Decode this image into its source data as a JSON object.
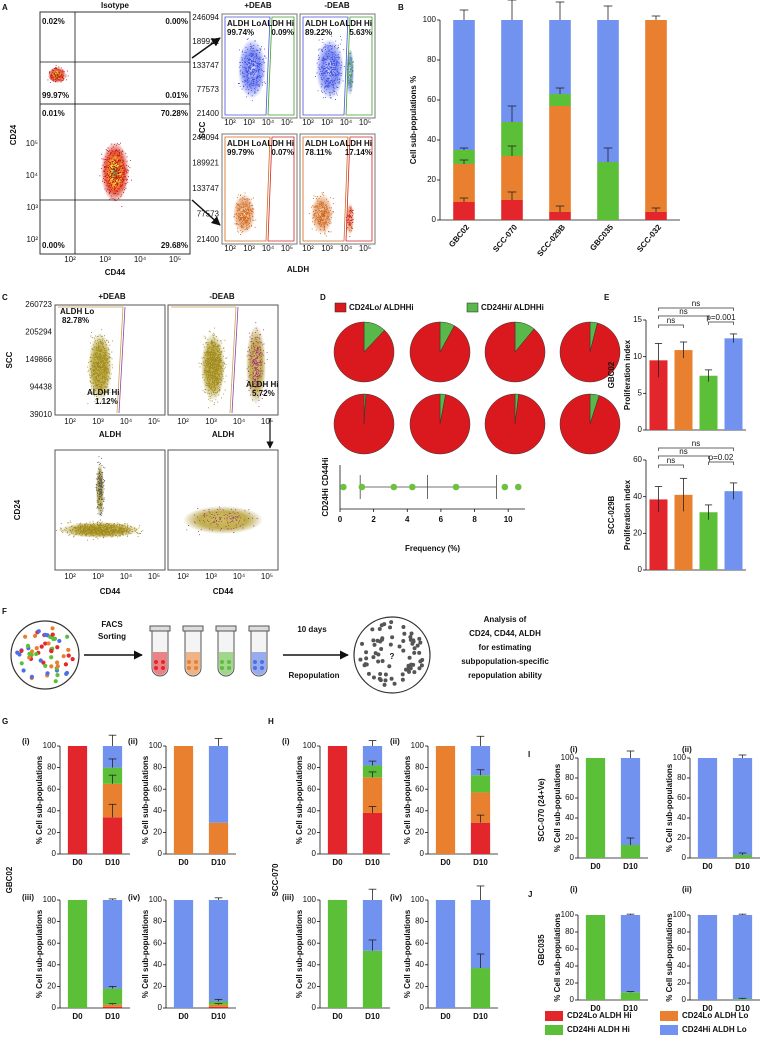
{
  "figure": {
    "panel_letters": [
      "A",
      "B",
      "C",
      "D",
      "E",
      "F",
      "G",
      "H",
      "I",
      "J"
    ],
    "log_ticks": [
      "10²",
      "10³",
      "10⁴",
      "10⁵"
    ],
    "A": {
      "title": "Isotype",
      "y_label": "CD24",
      "x_label": "CD44",
      "quadrants_top": [
        "0.02%",
        "0.00%",
        "99.97%",
        "0.01%"
      ],
      "quadrants_bottom": [
        "0.01%",
        "70.28%",
        "0.00%",
        "29.68%"
      ],
      "flow_y_label": "SCC",
      "flow_x_label": "ALDH",
      "conditions": [
        "+DEAB",
        "-DEAB"
      ],
      "scc_ticks": [
        246094,
        189921,
        133747,
        77573,
        21400
      ],
      "gates": [
        [
          "ALDH Lo",
          "99.74%",
          "ALDH Hi",
          "0.09%"
        ],
        [
          "ALDH Lo",
          "89.22%",
          "ALDH Hi",
          "5.63%"
        ],
        [
          "ALDH Lo",
          "99.79%",
          "ALDH Hi",
          "0.07%"
        ],
        [
          "ALDH Lo",
          "78.11%",
          "ALDH Hi",
          "17.14%"
        ]
      ]
    },
    "C": {
      "conditions": [
        "+DEAB",
        "-DEAB"
      ],
      "y_label": "SCC",
      "x_label": "ALDH",
      "scc_ticks": [
        260723,
        205294,
        149866,
        94438,
        39010
      ],
      "gate_lo": [
        "ALDH Lo",
        "82.78%"
      ],
      "gates_hi": [
        [
          "ALDH Hi",
          "1.12%"
        ],
        [
          "ALDH Hi",
          "5.72%"
        ]
      ],
      "bottom_y_label": "CD24",
      "bottom_x_label": "CD44"
    },
    "F": {
      "step1": [
        "FACS",
        "Sorting"
      ],
      "step2": "10 days",
      "step3": "Repopulation",
      "mark": "?",
      "analysis": [
        "Analysis of",
        "CD24, CD44, ALDH",
        "for estimating",
        "subpopulation-specific",
        "repopulation ability"
      ]
    },
    "G": {
      "sublabels": [
        "(i)",
        "(ii)",
        "(iii)",
        "(iv)"
      ],
      "side_label": "GBC02"
    },
    "H": {
      "sublabels": [
        "(i)",
        "(ii)",
        "(iii)",
        "(iv)"
      ],
      "side_label": "SCC-070"
    },
    "I": {
      "sublabels": [
        "(i)",
        "(ii)"
      ],
      "side_label": "SCC-070 (24+Ve)"
    },
    "J": {
      "sublabels": [
        "(i)",
        "(ii)"
      ],
      "side_label": "GBC035"
    },
    "legend": [
      {
        "name": "CD24Lo ALDH Hi",
        "color": "#e3262b"
      },
      {
        "name": "CD24Lo ALDH Lo",
        "color": "#e8802f"
      },
      {
        "name": "CD24Hi ALDH Hi",
        "color": "#5cbf38"
      },
      {
        "name": "CD24Hi ALDH Lo",
        "color": "#7193ef"
      }
    ]
  },
  "chart_data": [
    {
      "type": "stacked_bar",
      "y_label": "Cell sub-populations %",
      "categories": [
        "GBC02",
        "SCC-070",
        "SCC-029B",
        "GBC035",
        "SCC-032"
      ],
      "ylim": [
        0,
        100
      ],
      "yticks": [
        0,
        20,
        40,
        60,
        80,
        100
      ],
      "series": [
        {
          "color": "#e3262b",
          "values": [
            9,
            10,
            4,
            0,
            4
          ],
          "errors": [
            2,
            4,
            3,
            0,
            2
          ]
        },
        {
          "color": "#e8802f",
          "values": [
            19,
            22,
            53,
            0,
            96
          ],
          "errors": [
            2,
            5,
            0,
            0,
            2
          ]
        },
        {
          "color": "#5cbf38",
          "values": [
            7,
            17,
            6,
            29,
            0
          ],
          "errors": [
            1,
            8,
            3,
            7,
            0
          ]
        },
        {
          "color": "#7193ef",
          "values": [
            65,
            51,
            37,
            71,
            0
          ],
          "errors": [
            5,
            10,
            9,
            7,
            0
          ]
        }
      ]
    },
    {
      "type": "pie",
      "series": [
        {
          "name": "CD24Lo/ ALDHHi",
          "color": "#d9191e",
          "values": [
            88,
            92,
            89,
            96,
            99,
            97,
            98,
            95
          ]
        },
        {
          "name": "CD24Hi/ ALDHHi",
          "color": "#58b849",
          "values": [
            12,
            8,
            11,
            4,
            1,
            3,
            2,
            5
          ]
        }
      ]
    },
    {
      "type": "strip",
      "y_label": "CD24Hi CD44Hi",
      "x_label": "Frequency (%)",
      "values": [
        0.2,
        1.3,
        3.2,
        4.3,
        6.9,
        9.8,
        10.6
      ],
      "color": "#6ec13f",
      "lines": [
        1.2,
        5.2,
        9.3
      ],
      "xlim": [
        0,
        11
      ],
      "xticks": [
        0,
        2,
        4,
        6,
        8,
        10
      ]
    },
    {
      "type": "bar",
      "title": "GBC02",
      "y_label": "Proliferation index",
      "values": [
        9.5,
        10.9,
        7.4,
        12.5
      ],
      "errors": [
        2.3,
        1.1,
        0.8,
        0.6
      ],
      "colors": [
        "#e3262b",
        "#e8802f",
        "#5cbf38",
        "#7193ef"
      ],
      "ylim": [
        0,
        15
      ],
      "yticks": [
        0,
        5,
        10,
        15
      ],
      "comparisons": [
        {
          "pair": [
            0,
            3
          ],
          "label": "ns"
        },
        {
          "pair": [
            0,
            2
          ],
          "label": "ns"
        },
        {
          "pair": [
            0,
            1
          ],
          "label": "ns"
        },
        {
          "pair": [
            2,
            3
          ],
          "label": "p=0.001"
        }
      ]
    },
    {
      "type": "bar",
      "title": "SCC-029B",
      "y_label": "Proliferation index",
      "values": [
        38.5,
        41,
        31.5,
        43
      ],
      "errors": [
        7,
        9,
        4,
        4.5
      ],
      "colors": [
        "#e3262b",
        "#e8802f",
        "#5cbf38",
        "#7193ef"
      ],
      "ylim": [
        0,
        60
      ],
      "yticks": [
        0,
        20,
        40,
        60
      ],
      "comparisons": [
        {
          "pair": [
            0,
            3
          ],
          "label": "ns"
        },
        {
          "pair": [
            0,
            2
          ],
          "label": "ns"
        },
        {
          "pair": [
            0,
            1
          ],
          "label": "ns"
        },
        {
          "pair": [
            2,
            3
          ],
          "label": "p=0.02"
        }
      ]
    },
    {
      "type": "stacked_bar",
      "y_label": "% Cell sub-populations",
      "categories": [
        "D0",
        "D10"
      ],
      "ylim": [
        0,
        100
      ],
      "yticks": [
        0,
        20,
        40,
        60,
        80,
        100
      ],
      "series": [
        {
          "color": "#e3262b",
          "values": [
            100,
            34
          ],
          "errors": [
            0,
            12
          ]
        },
        {
          "color": "#e8802f",
          "values": [
            0,
            31
          ],
          "errors": [
            0,
            8
          ]
        },
        {
          "color": "#5cbf38",
          "values": [
            0,
            15
          ],
          "errors": [
            0,
            8
          ]
        },
        {
          "color": "#7193ef",
          "values": [
            0,
            20
          ],
          "errors": [
            0,
            10
          ]
        }
      ]
    },
    {
      "type": "stacked_bar",
      "y_label": "% Cell sub-populations",
      "categories": [
        "D0",
        "D10"
      ],
      "ylim": [
        0,
        100
      ],
      "yticks": [
        0,
        20,
        40,
        60,
        80,
        100
      ],
      "series": [
        {
          "color": "#e8802f",
          "values": [
            100,
            29
          ],
          "errors": [
            0,
            0
          ]
        },
        {
          "color": "#7193ef",
          "values": [
            0,
            71
          ],
          "errors": [
            0,
            7
          ]
        }
      ]
    },
    {
      "type": "stacked_bar",
      "y_label": "% Cell sub-populations",
      "categories": [
        "D0",
        "D10"
      ],
      "ylim": [
        0,
        100
      ],
      "yticks": [
        0,
        20,
        40,
        60,
        80,
        100
      ],
      "series": [
        {
          "color": "#e3262b",
          "values": [
            0,
            1
          ],
          "errors": [
            0,
            0
          ]
        },
        {
          "color": "#e8802f",
          "values": [
            0,
            2
          ],
          "errors": [
            0,
            1
          ]
        },
        {
          "color": "#5cbf38",
          "values": [
            100,
            15
          ],
          "errors": [
            0,
            2
          ]
        },
        {
          "color": "#7193ef",
          "values": [
            0,
            82
          ],
          "errors": [
            0,
            1
          ]
        }
      ]
    },
    {
      "type": "stacked_bar",
      "y_label": "% Cell sub-populations",
      "categories": [
        "D0",
        "D10"
      ],
      "ylim": [
        0,
        100
      ],
      "yticks": [
        0,
        20,
        40,
        60,
        80,
        100
      ],
      "series": [
        {
          "color": "#e3262b",
          "values": [
            0,
            1
          ],
          "errors": [
            0,
            0
          ]
        },
        {
          "color": "#e8802f",
          "values": [
            0,
            2
          ],
          "errors": [
            0,
            1
          ]
        },
        {
          "color": "#5cbf38",
          "values": [
            0,
            3
          ],
          "errors": [
            0,
            2
          ]
        },
        {
          "color": "#7193ef",
          "values": [
            100,
            94
          ],
          "errors": [
            0,
            2
          ]
        }
      ]
    },
    {
      "type": "stacked_bar",
      "y_label": "% Cell sub-populations",
      "categories": [
        "D0",
        "D10"
      ],
      "ylim": [
        0,
        100
      ],
      "yticks": [
        0,
        20,
        40,
        60,
        80,
        100
      ],
      "series": [
        {
          "color": "#e3262b",
          "values": [
            100,
            38
          ],
          "errors": [
            0,
            6
          ]
        },
        {
          "color": "#e8802f",
          "values": [
            0,
            33
          ],
          "errors": [
            0,
            5
          ]
        },
        {
          "color": "#5cbf38",
          "values": [
            0,
            11
          ],
          "errors": [
            0,
            4
          ]
        },
        {
          "color": "#7193ef",
          "values": [
            0,
            18
          ],
          "errors": [
            0,
            5
          ]
        }
      ]
    },
    {
      "type": "stacked_bar",
      "y_label": "% Cell sub-populations",
      "categories": [
        "D0",
        "D10"
      ],
      "ylim": [
        0,
        100
      ],
      "yticks": [
        0,
        20,
        40,
        60,
        80,
        100
      ],
      "series": [
        {
          "color": "#e3262b",
          "values": [
            0,
            29
          ],
          "errors": [
            0,
            7
          ]
        },
        {
          "color": "#e8802f",
          "values": [
            100,
            28
          ],
          "errors": [
            0,
            0
          ]
        },
        {
          "color": "#5cbf38",
          "values": [
            0,
            16
          ],
          "errors": [
            0,
            5
          ]
        },
        {
          "color": "#7193ef",
          "values": [
            0,
            27
          ],
          "errors": [
            0,
            9
          ]
        }
      ]
    },
    {
      "type": "stacked_bar",
      "y_label": "% Cell sub-populations",
      "categories": [
        "D0",
        "D10"
      ],
      "ylim": [
        0,
        100
      ],
      "yticks": [
        0,
        20,
        40,
        60,
        80,
        100
      ],
      "series": [
        {
          "color": "#5cbf38",
          "values": [
            100,
            53
          ],
          "errors": [
            0,
            10
          ]
        },
        {
          "color": "#7193ef",
          "values": [
            0,
            47
          ],
          "errors": [
            0,
            10
          ]
        }
      ]
    },
    {
      "type": "stacked_bar",
      "y_label": "% Cell sub-populations",
      "categories": [
        "D0",
        "D10"
      ],
      "ylim": [
        0,
        100
      ],
      "yticks": [
        0,
        20,
        40,
        60,
        80,
        100
      ],
      "series": [
        {
          "color": "#5cbf38",
          "values": [
            0,
            37
          ],
          "errors": [
            0,
            13
          ]
        },
        {
          "color": "#7193ef",
          "values": [
            100,
            63
          ],
          "errors": [
            0,
            13
          ]
        }
      ]
    },
    {
      "type": "stacked_bar",
      "y_label": "% Cell sub-populations",
      "categories": [
        "D0",
        "D10"
      ],
      "ylim": [
        0,
        100
      ],
      "yticks": [
        0,
        20,
        40,
        60,
        80,
        100
      ],
      "series": [
        {
          "color": "#5cbf38",
          "values": [
            100,
            13
          ],
          "errors": [
            0,
            7
          ]
        },
        {
          "color": "#7193ef",
          "values": [
            0,
            87
          ],
          "errors": [
            0,
            7
          ]
        }
      ]
    },
    {
      "type": "stacked_bar",
      "y_label": "% Cell sub-populations",
      "categories": [
        "D0",
        "D10"
      ],
      "ylim": [
        0,
        100
      ],
      "yticks": [
        0,
        20,
        40,
        60,
        80,
        100
      ],
      "series": [
        {
          "color": "#5cbf38",
          "values": [
            0,
            3
          ],
          "errors": [
            0,
            2
          ]
        },
        {
          "color": "#7193ef",
          "values": [
            100,
            97
          ],
          "errors": [
            0,
            3
          ]
        }
      ]
    },
    {
      "type": "stacked_bar",
      "y_label": "% Cell sub-populations",
      "categories": [
        "D0",
        "D10"
      ],
      "ylim": [
        0,
        100
      ],
      "yticks": [
        0,
        20,
        40,
        60,
        80,
        100
      ],
      "series": [
        {
          "color": "#5cbf38",
          "values": [
            100,
            9
          ],
          "errors": [
            0,
            1
          ]
        },
        {
          "color": "#7193ef",
          "values": [
            0,
            91
          ],
          "errors": [
            0,
            1
          ]
        }
      ]
    },
    {
      "type": "stacked_bar",
      "y_label": "% Cell sub-populations",
      "categories": [
        "D0",
        "D10"
      ],
      "ylim": [
        0,
        100
      ],
      "yticks": [
        0,
        20,
        40,
        60,
        80,
        100
      ],
      "series": [
        {
          "color": "#5cbf38",
          "values": [
            0,
            1
          ],
          "errors": [
            0,
            1
          ]
        },
        {
          "color": "#7193ef",
          "values": [
            100,
            99
          ],
          "errors": [
            0,
            1
          ]
        }
      ]
    }
  ]
}
